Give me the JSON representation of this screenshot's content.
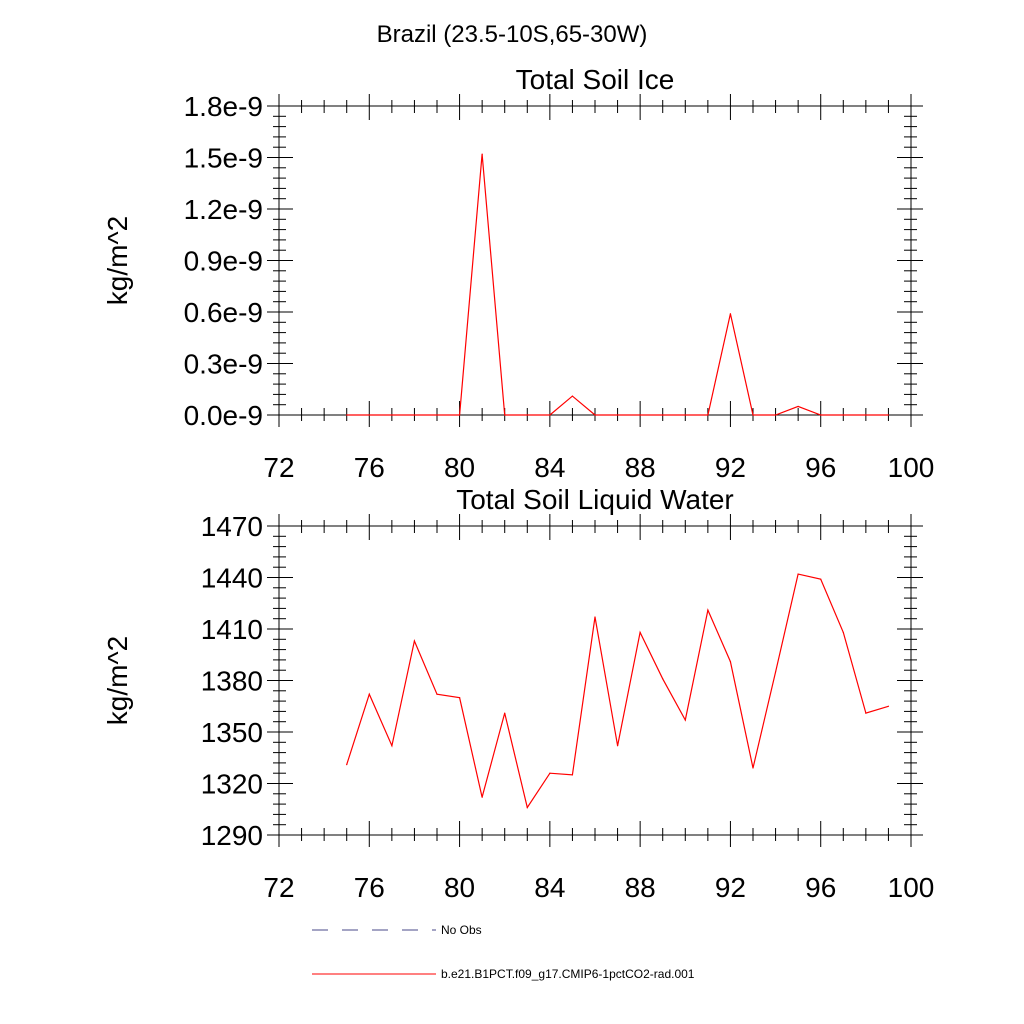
{
  "figure_title": "Brazil (23.5-10S,65-30W)",
  "legend": {
    "items": [
      {
        "label": "No Obs",
        "style": "dashed",
        "color": "#4a4a8a"
      },
      {
        "label": "b.e21.B1PCT.f09_g17.CMIP6-1pctCO2-rad.001",
        "style": "solid",
        "color": "#ff0000"
      }
    ]
  },
  "chart_data": [
    {
      "type": "line",
      "title": "Total Soil Ice",
      "ylabel": "kg/m^2",
      "xlabel": "",
      "xlim": [
        72,
        100
      ],
      "ylim": [
        0,
        1.8
      ],
      "x_ticks": [
        "72",
        "76",
        "80",
        "84",
        "88",
        "92",
        "96",
        "100"
      ],
      "y_ticks": [
        "0.0e-9",
        "0.3e-9",
        "0.6e-9",
        "0.9e-9",
        "1.2e-9",
        "1.5e-9",
        "1.8e-9"
      ],
      "series": [
        {
          "name": "b.e21.B1PCT.f09_g17.CMIP6-1pctCO2-rad.001",
          "color": "#ff0000",
          "x": [
            75,
            76,
            77,
            78,
            79,
            80,
            81,
            82,
            83,
            84,
            85,
            86,
            87,
            88,
            89,
            90,
            91,
            92,
            93,
            94,
            95,
            96,
            97,
            98,
            99
          ],
          "y": [
            0,
            0,
            0,
            0,
            0,
            0,
            1.52,
            0,
            0,
            0,
            0.11,
            0,
            0,
            0,
            0,
            0,
            0,
            0.59,
            0,
            0,
            0.05,
            0,
            0,
            0,
            0
          ]
        }
      ]
    },
    {
      "type": "line",
      "title": "Total Soil Liquid Water",
      "ylabel": "kg/m^2",
      "xlabel": "",
      "xlim": [
        72,
        100
      ],
      "ylim": [
        1290,
        1470
      ],
      "x_ticks": [
        "72",
        "76",
        "80",
        "84",
        "88",
        "92",
        "96",
        "100"
      ],
      "y_ticks": [
        "1290",
        "1320",
        "1350",
        "1380",
        "1410",
        "1440",
        "1470"
      ],
      "series": [
        {
          "name": "b.e21.B1PCT.f09_g17.CMIP6-1pctCO2-rad.001",
          "color": "#ff0000",
          "x": [
            75,
            76,
            77,
            78,
            79,
            80,
            81,
            82,
            83,
            84,
            85,
            86,
            87,
            88,
            89,
            90,
            91,
            92,
            93,
            94,
            95,
            96,
            97,
            98,
            99
          ],
          "y": [
            1331,
            1372,
            1342,
            1403,
            1372,
            1370,
            1312,
            1361,
            1306,
            1326,
            1325,
            1417,
            1342,
            1408,
            1381,
            1357,
            1421,
            1391,
            1329,
            1385,
            1442,
            1439,
            1408,
            1361,
            1365
          ]
        }
      ]
    }
  ]
}
